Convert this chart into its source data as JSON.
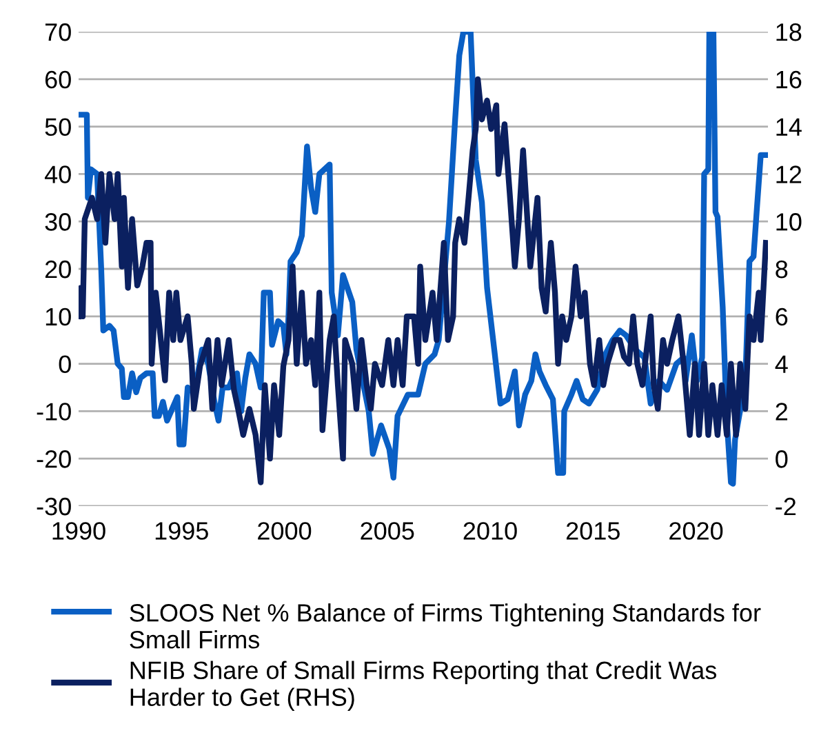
{
  "chart_data": {
    "type": "line",
    "xlim": [
      1990,
      2023.5
    ],
    "xticks": [
      1990,
      1995,
      2000,
      2005,
      2010,
      2015,
      2020
    ],
    "ylim": [
      -30,
      70
    ],
    "yticks": [
      -30,
      -20,
      -10,
      0,
      10,
      20,
      30,
      40,
      50,
      60,
      70
    ],
    "y2lim": [
      -2,
      18
    ],
    "y2ticks": [
      -2,
      0,
      2,
      4,
      6,
      8,
      10,
      12,
      14,
      16,
      18
    ],
    "grid": "y",
    "legend": "bottom",
    "marker": "none",
    "line_style": "solid",
    "series": [
      {
        "name": "SLOOS Net % Balance of Firms Tightening Standards for Small Firms",
        "color": "#0a5fc4",
        "axis": "y",
        "x": [
          1990.1,
          1990.4,
          1990.45,
          1990.6,
          1990.9,
          1991.1,
          1991.2,
          1991.5,
          1991.7,
          1991.9,
          1992.1,
          1992.2,
          1992.4,
          1992.6,
          1992.8,
          1993.0,
          1993.3,
          1993.6,
          1993.7,
          1993.9,
          1994.1,
          1994.3,
          1994.5,
          1994.8,
          1994.9,
          1995.1,
          1995.3,
          1995.6,
          1995.8,
          1996.0,
          1996.3,
          1996.6,
          1996.8,
          1997.0,
          1997.3,
          1997.5,
          1997.7,
          1997.9,
          1998.1,
          1998.3,
          1998.6,
          1998.85,
          1999.0,
          1999.3,
          1999.4,
          1999.7,
          1999.95,
          2000.1,
          2000.2,
          2000.3,
          2000.6,
          2000.85,
          2001.1,
          2001.3,
          2001.5,
          2001.7,
          2002.2,
          2002.3,
          2002.6,
          2002.85,
          2003.3,
          2003.5,
          2004.1,
          2004.3,
          2004.7,
          2005.1,
          2005.3,
          2005.5,
          2006.0,
          2006.5,
          2006.85,
          2007.3,
          2007.5,
          2008.0,
          2008.3,
          2008.5,
          2008.7,
          2009.05,
          2009.3,
          2009.6,
          2009.85,
          2010.2,
          2010.5,
          2010.85,
          2011.2,
          2011.4,
          2011.7,
          2012.0,
          2012.2,
          2012.4,
          2012.7,
          2013.05,
          2013.3,
          2013.55,
          2013.6,
          2013.95,
          2014.2,
          2014.5,
          2014.8,
          2015.2,
          2015.6,
          2015.95,
          2016.3,
          2016.6,
          2017.05,
          2017.5,
          2017.8,
          2018.2,
          2018.6,
          2019.05,
          2019.4,
          2019.5,
          2019.8,
          2020.05,
          2020.3,
          2020.4,
          2020.6,
          2020.65,
          2020.85,
          2020.95,
          2021.05,
          2021.3,
          2021.5,
          2021.7,
          2021.8,
          2021.9,
          2022.4,
          2022.6,
          2022.8,
          2022.95,
          2023.15,
          2023.4
        ],
        "values": [
          52.5,
          52.5,
          35,
          41,
          40,
          20,
          7,
          8,
          7,
          0,
          -1,
          -7,
          -7,
          -2,
          -6,
          -3,
          -2,
          -2,
          -11,
          -11,
          -8,
          -12,
          -10,
          -7,
          -17,
          -17,
          -5,
          -6,
          -2,
          3,
          0,
          -8,
          -12,
          -5,
          -5,
          -3,
          -2,
          -10,
          -3,
          2,
          0,
          -5,
          15,
          15,
          4,
          9,
          8,
          2,
          10,
          21.6,
          23.5,
          27,
          45.8,
          37,
          32,
          40,
          42,
          15,
          6,
          18.7,
          13,
          3,
          -10,
          -19,
          -13,
          -18,
          -24,
          -11,
          -6.5,
          -6.5,
          0,
          2,
          5,
          30,
          51.6,
          65,
          70,
          70,
          43,
          34,
          16,
          3,
          -8.4,
          -7.5,
          -1.6,
          -13,
          -6.5,
          -3.6,
          2,
          -1.6,
          -4.5,
          -7.5,
          -23,
          -23,
          -10,
          -6.5,
          -3.6,
          -7.5,
          -8.4,
          -5.5,
          2,
          5,
          7,
          6,
          3,
          1.3,
          -8.4,
          -3.6,
          -5.5,
          0,
          1.3,
          -3.6,
          6,
          -3.6,
          1.3,
          40,
          41,
          70,
          70,
          32,
          31,
          12,
          -12,
          -25,
          -25.3,
          -16,
          -3.6,
          21.6,
          22.6,
          32,
          44,
          44
        ]
      },
      {
        "name": "NFIB Share of Small Firms Reporting that Credit Was Harder to Get (RHS)",
        "color": "#0b2060",
        "axis": "y2",
        "x": [
          1990.0,
          1990.1,
          1990.2,
          1990.3,
          1990.65,
          1990.9,
          1991.1,
          1991.3,
          1991.5,
          1991.75,
          1991.9,
          1992.1,
          1992.2,
          1992.4,
          1992.6,
          1992.85,
          1993.1,
          1993.3,
          1993.5,
          1993.55,
          1993.75,
          1993.95,
          1994.2,
          1994.4,
          1994.6,
          1994.75,
          1994.95,
          1995.3,
          1995.5,
          1995.6,
          1995.9,
          1996.3,
          1996.5,
          1996.75,
          1996.95,
          1997.3,
          1997.55,
          1997.75,
          1998.0,
          1998.3,
          1998.6,
          1998.85,
          1999.05,
          1999.3,
          1999.5,
          1999.75,
          1999.95,
          2000.2,
          2000.4,
          2000.6,
          2000.85,
          2001.05,
          2001.3,
          2001.5,
          2001.7,
          2001.85,
          2002.2,
          2002.4,
          2002.6,
          2002.85,
          2002.95,
          2003.3,
          2003.5,
          2003.75,
          2004.0,
          2004.2,
          2004.4,
          2004.75,
          2005.05,
          2005.3,
          2005.5,
          2005.75,
          2005.95,
          2006.3,
          2006.5,
          2006.6,
          2006.85,
          2007.2,
          2007.4,
          2007.75,
          2007.95,
          2008.2,
          2008.3,
          2008.5,
          2008.75,
          2008.95,
          2009.15,
          2009.3,
          2009.4,
          2009.6,
          2009.85,
          2010.05,
          2010.3,
          2010.4,
          2010.7,
          2010.95,
          2011.2,
          2011.4,
          2011.6,
          2011.95,
          2012.3,
          2012.5,
          2012.7,
          2012.95,
          2013.15,
          2013.3,
          2013.5,
          2013.7,
          2013.95,
          2014.15,
          2014.4,
          2014.6,
          2014.85,
          2015.05,
          2015.3,
          2015.5,
          2015.7,
          2016.05,
          2016.3,
          2016.5,
          2016.75,
          2016.95,
          2017.15,
          2017.4,
          2017.8,
          2017.95,
          2018.15,
          2018.4,
          2018.6,
          2018.85,
          2019.15,
          2019.4,
          2019.7,
          2019.95,
          2020.15,
          2020.4,
          2020.6,
          2020.8,
          2021.05,
          2021.25,
          2021.5,
          2021.7,
          2021.95,
          2022.15,
          2022.4,
          2022.6,
          2022.8,
          2023.05,
          2023.15,
          2023.4
        ],
        "values": [
          6,
          7.2,
          6,
          10.1,
          11,
          10.1,
          12,
          9.1,
          12,
          10.1,
          12,
          8.1,
          11,
          7.2,
          10.1,
          7.3,
          8.1,
          9.1,
          9.1,
          4,
          7,
          5.4,
          3.3,
          7,
          5,
          7,
          5,
          6,
          4,
          2.1,
          3.9,
          5,
          2.1,
          5,
          3.1,
          5,
          2.9,
          2.1,
          1,
          2.1,
          1,
          -1,
          3.1,
          0,
          3.1,
          1,
          3.9,
          5,
          8.1,
          4,
          7,
          4,
          5,
          3.1,
          7,
          1.2,
          5,
          6,
          3.1,
          0,
          5,
          4,
          2.1,
          5,
          3.1,
          2.1,
          4,
          3.1,
          5,
          3.1,
          5,
          3.1,
          6,
          6,
          4,
          8.1,
          5,
          7,
          5,
          9.1,
          5,
          6,
          9.1,
          10.1,
          9.1,
          11,
          13,
          13.9,
          16,
          14.3,
          15.1,
          13.9,
          14.9,
          12,
          14.1,
          11.2,
          8.1,
          10.1,
          13,
          8.1,
          11,
          7.2,
          6.2,
          9.1,
          7,
          4,
          6,
          5,
          6,
          8.1,
          6,
          7,
          4,
          3.1,
          5,
          3.1,
          4,
          5,
          5,
          4.3,
          4,
          6,
          4,
          3.1,
          6,
          3.1,
          2.1,
          5,
          4,
          5,
          6,
          4,
          1,
          4,
          1,
          4,
          1,
          3.1,
          1,
          3.1,
          1,
          4,
          1,
          4,
          2.1,
          6,
          5,
          7,
          5,
          9.1
        ]
      }
    ]
  }
}
